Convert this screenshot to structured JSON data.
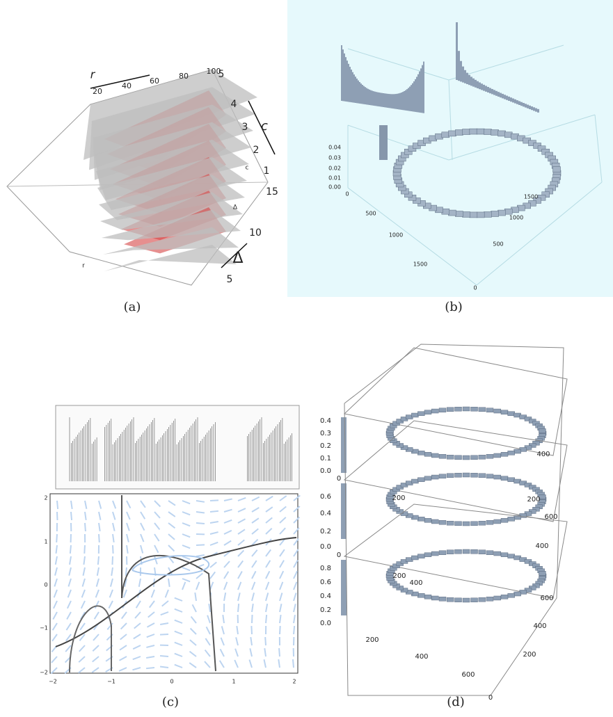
{
  "figure": {
    "panels": [
      {
        "caption": "(a)",
        "labels": [
          "r",
          "20",
          "40",
          "60",
          "80",
          "100",
          "5",
          "4",
          "3",
          "2",
          "1",
          "c",
          "15",
          "10",
          "5",
          "Δ",
          "c",
          "Δ",
          "r"
        ]
      },
      {
        "caption": "(b)",
        "labels": [
          "0.04",
          "0.03",
          "0.02",
          "0.01",
          "0.00",
          "0",
          "500",
          "1000",
          "1500",
          "1500",
          "1000",
          "500",
          "0"
        ]
      },
      {
        "caption": "(c)",
        "labels": [
          "2",
          "1",
          "0",
          "−1",
          "−2",
          "−2",
          "−1",
          "0",
          "1",
          "2"
        ]
      },
      {
        "caption": "(d)",
        "labels": [
          "0.4",
          "0.3",
          "0.2",
          "0.1",
          "0.0",
          "0",
          "200",
          "400",
          "200",
          "0.6",
          "0.4",
          "0.2",
          "0.0",
          "0",
          "200",
          "600",
          "400",
          "0.8",
          "0.6",
          "0.4",
          "0.2",
          "0.0",
          "400",
          "200",
          "400",
          "600",
          "600",
          "400",
          "200",
          "0"
        ]
      }
    ]
  }
}
